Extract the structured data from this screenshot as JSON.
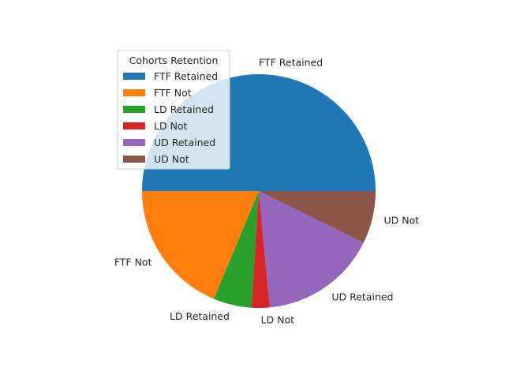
{
  "chart_data": {
    "type": "pie",
    "categories": [
      "FTF Retained",
      "FTF Not",
      "LD Retained",
      "LD Not",
      "UD Retained",
      "UD Not"
    ],
    "values": [
      50.0,
      18.7,
      5.3,
      2.5,
      16.2,
      7.3
    ],
    "colors": [
      "#1f77b4",
      "#ff7f0e",
      "#2ca02c",
      "#d62728",
      "#9467bd",
      "#8c564b"
    ],
    "start_angle_deg": 0,
    "direction": "counterclockwise",
    "legend": {
      "title": "Cohorts Retention",
      "placement": "upper-left",
      "entries": [
        "FTF Retained",
        "FTF Not",
        "LD Retained",
        "LD Not",
        "UD Retained",
        "UD Not"
      ]
    }
  }
}
